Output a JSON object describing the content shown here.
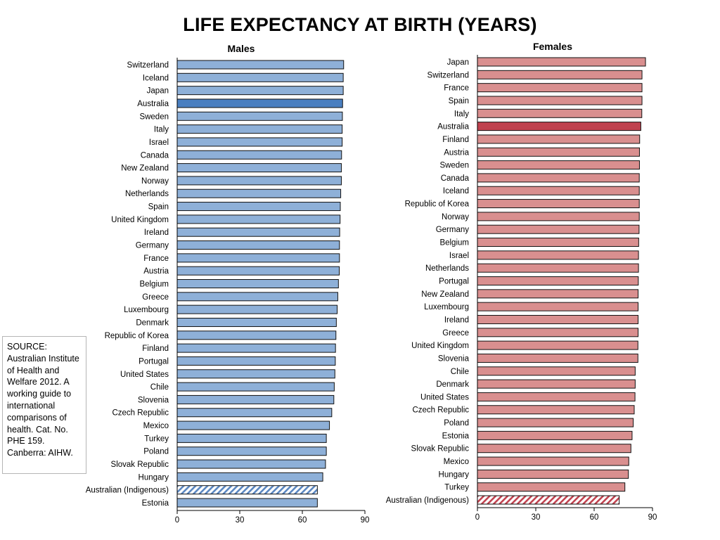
{
  "title": "LIFE EXPECTANCY AT BIRTH (YEARS)",
  "source_note": "SOURCE: Australian Institute of Health and Welfare 2012. A working guide to international comparisons of health. Cat. No. PHE 159. Canberra: AIHW.",
  "colors": {
    "male_bar": "#8eb0d8",
    "male_highlight": "#4a7fc0",
    "male_hatch": "#5a86c0",
    "female_bar": "#d98f8f",
    "female_highlight": "#c0424f",
    "female_hatch": "#c0424f",
    "outline": "#111111"
  },
  "chart_data": [
    {
      "type": "bar",
      "orientation": "horizontal",
      "title": "Males",
      "xlim": [
        0,
        90
      ],
      "xticks": [
        0,
        30,
        60,
        90
      ],
      "xlabel": "",
      "ylabel": "",
      "highlight": "Australia",
      "hatched": "Australian (Indigenous)",
      "categories": [
        "Switzerland",
        "Iceland",
        "Japan",
        "Australia",
        "Sweden",
        "Italy",
        "Israel",
        "Canada",
        "New Zealand",
        "Norway",
        "Netherlands",
        "Spain",
        "United Kingdom",
        "Ireland",
        "Germany",
        "France",
        "Austria",
        "Belgium",
        "Greece",
        "Luxembourg",
        "Denmark",
        "Republic of Korea",
        "Finland",
        "Portugal",
        "United States",
        "Chile",
        "Slovenia",
        "Czech Republic",
        "Mexico",
        "Turkey",
        "Poland",
        "Slovak Republic",
        "Hungary",
        "Australian (Indigenous)",
        "Estonia"
      ],
      "values": [
        79.8,
        79.6,
        79.6,
        79.3,
        79.2,
        79.1,
        79.1,
        78.8,
        78.7,
        78.7,
        78.4,
        78.2,
        78.1,
        77.9,
        77.8,
        77.8,
        77.7,
        77.3,
        77.0,
        76.7,
        76.3,
        76.1,
        75.9,
        75.8,
        75.6,
        75.3,
        75.1,
        74.1,
        73.0,
        71.5,
        71.5,
        71.1,
        69.8,
        67.2,
        67.2
      ]
    },
    {
      "type": "bar",
      "orientation": "horizontal",
      "title": "Females",
      "xlim": [
        0,
        90
      ],
      "xticks": [
        0,
        30,
        60,
        90
      ],
      "xlabel": "",
      "ylabel": "",
      "highlight": "Australia",
      "hatched": "Australian (Indigenous)",
      "categories": [
        "Japan",
        "Switzerland",
        "France",
        "Spain",
        "Italy",
        "Australia",
        "Finland",
        "Austria",
        "Sweden",
        "Canada",
        "Iceland",
        "Republic of Korea",
        "Norway",
        "Germany",
        "Belgium",
        "Israel",
        "Netherlands",
        "Portugal",
        "New Zealand",
        "Luxembourg",
        "Ireland",
        "Greece",
        "United Kingdom",
        "Slovenia",
        "Chile",
        "Denmark",
        "United States",
        "Czech Republic",
        "Poland",
        "Estonia",
        "Slovak Republic",
        "Mexico",
        "Hungary",
        "Turkey",
        "Australian (Indigenous)"
      ],
      "values": [
        86.4,
        84.6,
        84.6,
        84.6,
        84.5,
        84.0,
        83.4,
        83.3,
        83.3,
        83.2,
        83.2,
        83.2,
        83.2,
        83.1,
        82.9,
        82.8,
        82.8,
        82.7,
        82.6,
        82.6,
        82.6,
        82.6,
        82.5,
        82.5,
        81.1,
        81.1,
        81.0,
        80.6,
        80.1,
        79.5,
        78.9,
        77.8,
        77.6,
        75.8,
        72.9
      ]
    }
  ]
}
